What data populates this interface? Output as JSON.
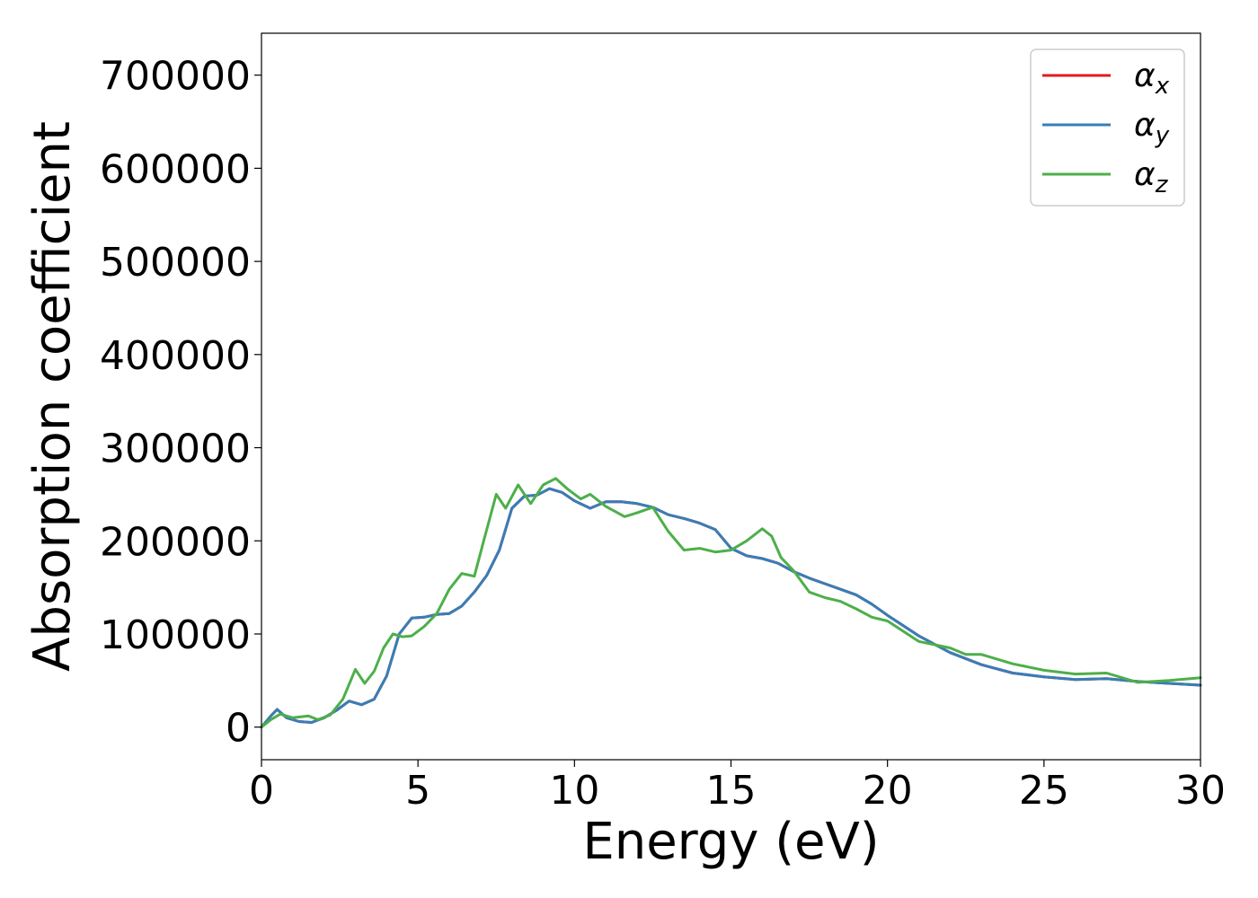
{
  "chart_data": {
    "type": "line",
    "title": "",
    "xlabel": "Energy (eV)",
    "ylabel": "Absorption coefficient",
    "xlim": [
      0,
      30
    ],
    "ylim": [
      -35000,
      745000
    ],
    "xticks": [
      0,
      5,
      10,
      15,
      20,
      25,
      30
    ],
    "yticks": [
      0,
      100000,
      200000,
      300000,
      400000,
      500000,
      600000,
      700000
    ],
    "grid": false,
    "legend": {
      "placement": "top-right"
    },
    "series": [
      {
        "name": "αx",
        "symbol": "α",
        "sub": "x",
        "color": "#e41a1c",
        "x": [
          0,
          0.3,
          0.5,
          0.8,
          1.2,
          1.6,
          2.0,
          2.4,
          2.8,
          3.2,
          3.6,
          4.0,
          4.4,
          4.8,
          5.2,
          5.6,
          6.0,
          6.4,
          6.8,
          7.2,
          7.6,
          8.0,
          8.4,
          8.8,
          9.2,
          9.6,
          10.0,
          10.5,
          11.0,
          11.5,
          12.0,
          12.5,
          13.0,
          13.5,
          14.0,
          14.5,
          15.0,
          15.5,
          16.0,
          16.5,
          17.0,
          17.5,
          18.0,
          18.5,
          19.0,
          19.5,
          20.0,
          21.0,
          22.0,
          23.0,
          24.0,
          25.0,
          26.0,
          27.0,
          28.0,
          29.0,
          30.0
        ],
        "y": [
          0,
          12000,
          19000,
          10000,
          6000,
          5000,
          10000,
          18000,
          28000,
          24000,
          30000,
          55000,
          100000,
          117000,
          118000,
          121000,
          122000,
          130000,
          145000,
          163000,
          190000,
          235000,
          248000,
          249000,
          256000,
          252000,
          243000,
          235000,
          242000,
          242000,
          240000,
          236000,
          228000,
          224000,
          219000,
          212000,
          192000,
          184000,
          181000,
          176000,
          167000,
          160000,
          154000,
          148000,
          142000,
          132000,
          120000,
          98000,
          80000,
          67000,
          58000,
          54000,
          51000,
          52000,
          49000,
          47000,
          45000
        ]
      },
      {
        "name": "αy",
        "symbol": "α",
        "sub": "y",
        "color": "#377eb8",
        "x": [
          0,
          0.3,
          0.5,
          0.8,
          1.2,
          1.6,
          2.0,
          2.4,
          2.8,
          3.2,
          3.6,
          4.0,
          4.4,
          4.8,
          5.2,
          5.6,
          6.0,
          6.4,
          6.8,
          7.2,
          7.6,
          8.0,
          8.4,
          8.8,
          9.2,
          9.6,
          10.0,
          10.5,
          11.0,
          11.5,
          12.0,
          12.5,
          13.0,
          13.5,
          14.0,
          14.5,
          15.0,
          15.5,
          16.0,
          16.5,
          17.0,
          17.5,
          18.0,
          18.5,
          19.0,
          19.5,
          20.0,
          21.0,
          22.0,
          23.0,
          24.0,
          25.0,
          26.0,
          27.0,
          28.0,
          29.0,
          30.0
        ],
        "y": [
          0,
          12000,
          19000,
          10000,
          6000,
          5000,
          10000,
          18000,
          28000,
          24000,
          30000,
          55000,
          100000,
          117000,
          118000,
          121000,
          122000,
          130000,
          145000,
          163000,
          190000,
          235000,
          248000,
          249000,
          256000,
          252000,
          243000,
          235000,
          242000,
          242000,
          240000,
          236000,
          228000,
          224000,
          219000,
          212000,
          192000,
          184000,
          181000,
          176000,
          167000,
          160000,
          154000,
          148000,
          142000,
          132000,
          120000,
          98000,
          80000,
          67000,
          58000,
          54000,
          51000,
          52000,
          49000,
          47000,
          45000
        ]
      },
      {
        "name": "αz",
        "symbol": "α",
        "sub": "z",
        "color": "#4daf4a",
        "x": [
          0,
          0.3,
          0.6,
          1.0,
          1.5,
          1.8,
          2.2,
          2.6,
          3.0,
          3.3,
          3.6,
          3.9,
          4.2,
          4.5,
          4.8,
          5.2,
          5.6,
          6.0,
          6.4,
          6.8,
          7.1,
          7.5,
          7.8,
          8.2,
          8.6,
          9.0,
          9.4,
          9.8,
          10.2,
          10.5,
          11.0,
          11.6,
          12.0,
          12.5,
          13.0,
          13.5,
          14.0,
          14.5,
          15.0,
          15.5,
          16.0,
          16.3,
          16.6,
          17.0,
          17.5,
          18.0,
          18.5,
          19.0,
          19.5,
          20.0,
          21.0,
          22.0,
          22.5,
          23.0,
          24.0,
          25.0,
          26.0,
          27.0,
          28.0,
          29.0,
          30.0
        ],
        "y": [
          0,
          8000,
          14000,
          10000,
          12000,
          8000,
          13000,
          30000,
          62000,
          47000,
          60000,
          85000,
          100000,
          97000,
          98000,
          108000,
          122000,
          148000,
          165000,
          162000,
          200000,
          250000,
          235000,
          260000,
          240000,
          260000,
          267000,
          255000,
          245000,
          250000,
          237000,
          226000,
          230000,
          236000,
          210000,
          190000,
          192000,
          188000,
          190000,
          200000,
          213000,
          205000,
          182000,
          168000,
          145000,
          139000,
          135000,
          127000,
          118000,
          114000,
          92000,
          85000,
          78000,
          78000,
          68000,
          61000,
          57000,
          58000,
          48000,
          50000,
          53000
        ]
      }
    ]
  }
}
